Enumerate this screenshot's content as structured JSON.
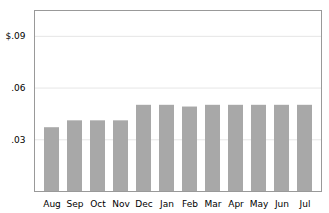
{
  "chart_data": {
    "type": "bar",
    "categories": [
      "Aug",
      "Sep",
      "Oct",
      "Nov",
      "Dec",
      "Jan",
      "Feb",
      "Mar",
      "Apr",
      "May",
      "Jun",
      "Jul"
    ],
    "values": [
      0.037,
      0.041,
      0.041,
      0.041,
      0.05,
      0.05,
      0.049,
      0.05,
      0.05,
      0.05,
      0.05,
      0.05
    ],
    "color": "#a8a8a8",
    "ylim": [
      0,
      0.105
    ],
    "yticks": [
      {
        "value": 0.03,
        "label": ".03"
      },
      {
        "value": 0.06,
        "label": ".06"
      },
      {
        "value": 0.09,
        "label": "$.09"
      }
    ],
    "grid": true
  }
}
